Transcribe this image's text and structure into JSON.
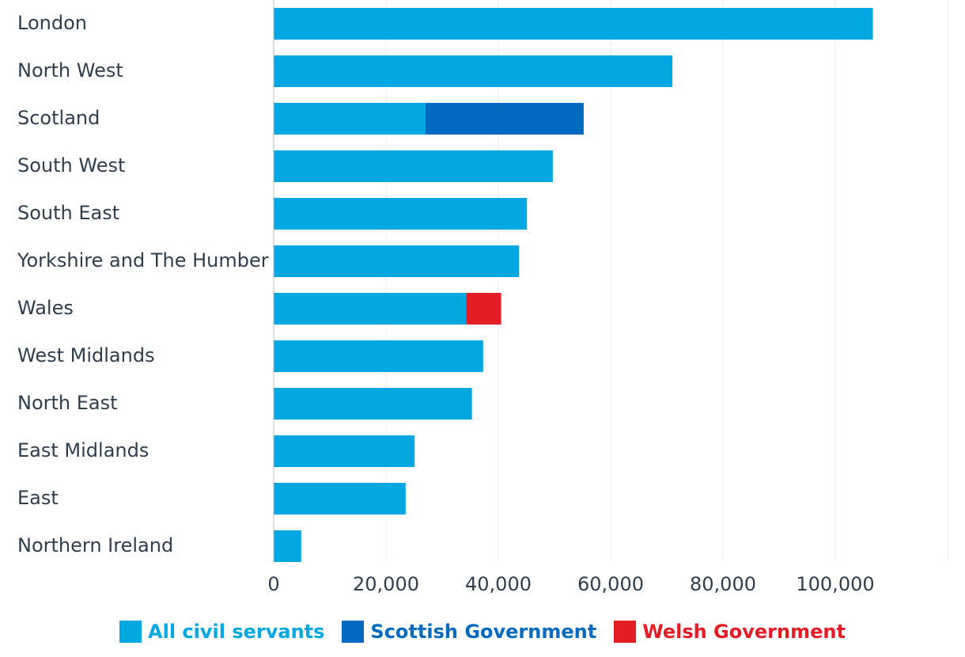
{
  "chart_data": {
    "type": "bar",
    "orientation": "horizontal",
    "stacked": true,
    "categories": [
      "London",
      "North West",
      "Scotland",
      "South West",
      "South East",
      "Yorkshire and The Humber",
      "Wales",
      "West Midlands",
      "North East",
      "East Midlands",
      "East",
      "Northern Ireland"
    ],
    "series": [
      {
        "name": "All civil servants",
        "color": "#00a7e1",
        "values": [
          106700,
          71000,
          27000,
          49700,
          45100,
          43700,
          34300,
          37300,
          35300,
          25100,
          23500,
          4900
        ]
      },
      {
        "name": "Scottish Government",
        "color": "#006ac1",
        "values": [
          0,
          0,
          28200,
          0,
          0,
          0,
          0,
          0,
          0,
          0,
          0,
          0
        ]
      },
      {
        "name": "Welsh Government",
        "color": "#e41c24",
        "values": [
          0,
          0,
          0,
          0,
          0,
          0,
          6200,
          0,
          0,
          0,
          0,
          0
        ]
      }
    ],
    "xlim": [
      0,
      120000
    ],
    "xticks": [
      0,
      20000,
      40000,
      60000,
      80000,
      100000
    ],
    "xtick_labels": [
      "0",
      "20,000",
      "40,000",
      "60,000",
      "80,000",
      "100,000"
    ],
    "grid": true,
    "legend_position": "bottom-center",
    "title": "",
    "xlabel": "",
    "ylabel": ""
  }
}
